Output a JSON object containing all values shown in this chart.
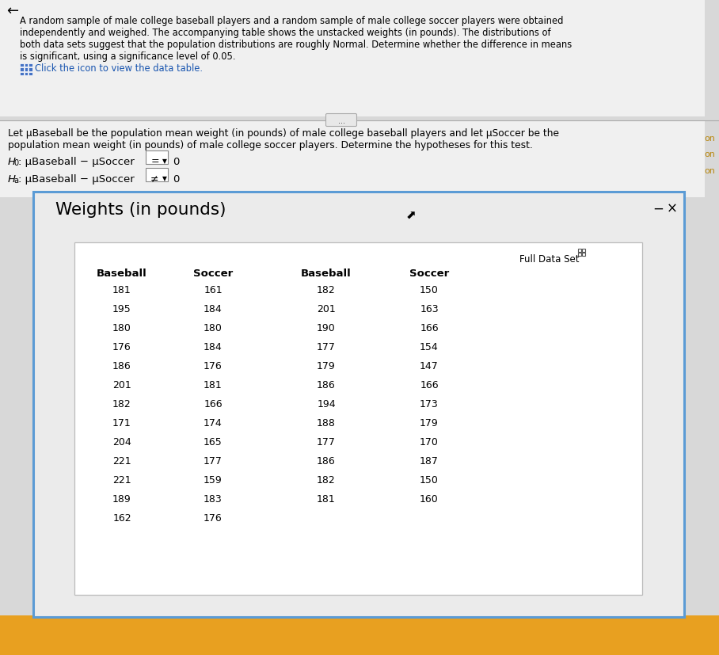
{
  "top_lines": [
    "A random sample of male college baseball players and a random sample of male college soccer players were obtained",
    "independently and weighed. The accompanying table shows the unstacked weights (in pounds). The distributions of",
    "both data sets suggest that the population distributions are roughly Normal. Determine whether the difference in means",
    "is significant, using a significance level of 0.05."
  ],
  "click_text": "Click the icon to view the data table.",
  "let_text_1": "Let μBaseball be the population mean weight (in pounds) of male college baseball players and let μSoccer be the",
  "let_text_2": "population mean weight (in pounds) of male college soccer players. Determine the hypotheses for this test.",
  "h0_dropdown": "=",
  "ha_dropdown": "≠",
  "dialog_title": "Weights (in pounds)",
  "full_data_set_label": "Full Data Set",
  "col_headers": [
    "Baseball",
    "Soccer",
    "Baseball",
    "Soccer"
  ],
  "baseball_col1": [
    181,
    195,
    180,
    176,
    186,
    201,
    182,
    171,
    204,
    221,
    221,
    189,
    162
  ],
  "soccer_col1": [
    161,
    184,
    180,
    184,
    176,
    181,
    166,
    174,
    165,
    177,
    159,
    183,
    176
  ],
  "baseball_col2": [
    182,
    201,
    190,
    177,
    179,
    186,
    194,
    188,
    177,
    186,
    182,
    181
  ],
  "soccer_col2": [
    150,
    163,
    166,
    154,
    147,
    166,
    173,
    179,
    170,
    187,
    150,
    160
  ],
  "bg_color": "#d8d8d8",
  "top_bg": "#f0f0f0",
  "dialog_bg": "#ebebeb",
  "table_bg": "#ffffff",
  "border_color": "#5b9bd5",
  "on_label_color": "#b8860b",
  "click_link_color": "#1a56b0",
  "icon_color": "#4472c4"
}
